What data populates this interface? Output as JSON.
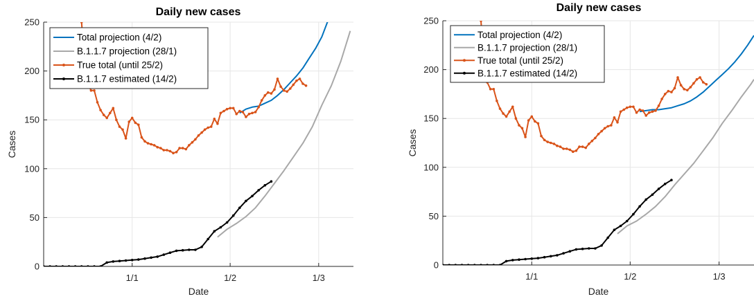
{
  "chart_data": [
    {
      "type": "line",
      "title": "Daily new cases",
      "xlabel": "Date",
      "ylabel": "Cases",
      "xlim": [
        "2020-12-04",
        "2021-03-12"
      ],
      "ylim": [
        0,
        250
      ],
      "xticks": [
        {
          "date": "2021-01-01",
          "label": "1/1"
        },
        {
          "date": "2021-02-01",
          "label": "1/2"
        },
        {
          "date": "2021-03-01",
          "label": "1/3"
        }
      ],
      "yticks": [
        0,
        50,
        100,
        150,
        200,
        250
      ],
      "grid": true,
      "legend_position": "top-left",
      "series": [
        {
          "name": "Total projection (4/2)",
          "color": "#0072BD",
          "marker": "none",
          "x": [
            "2021-02-04",
            "2021-02-06",
            "2021-02-08",
            "2021-02-10",
            "2021-02-12",
            "2021-02-14",
            "2021-02-16",
            "2021-02-18",
            "2021-02-20",
            "2021-02-22",
            "2021-02-24",
            "2021-02-26",
            "2021-02-28",
            "2021-03-02",
            "2021-03-04"
          ],
          "y": [
            157,
            161,
            163,
            164,
            167,
            170,
            175,
            181,
            188,
            195,
            203,
            213,
            223,
            235,
            252
          ]
        },
        {
          "name": "B.1.1.7 projection (28/1)",
          "color": "#A8A8A8",
          "marker": "none",
          "x": [
            "2021-01-28",
            "2021-01-31",
            "2021-02-03",
            "2021-02-06",
            "2021-02-09",
            "2021-02-12",
            "2021-02-15",
            "2021-02-18",
            "2021-02-21",
            "2021-02-24",
            "2021-02-27",
            "2021-03-02",
            "2021-03-05",
            "2021-03-08",
            "2021-03-11"
          ],
          "y": [
            30,
            38,
            44,
            51,
            60,
            72,
            85,
            98,
            112,
            126,
            143,
            165,
            185,
            210,
            241
          ]
        },
        {
          "name": "True total (until 25/2)",
          "color": "#D95319",
          "marker": "dot",
          "x": [
            "2020-12-16",
            "2020-12-17",
            "2020-12-18",
            "2020-12-19",
            "2020-12-20",
            "2020-12-21",
            "2020-12-22",
            "2020-12-23",
            "2020-12-24",
            "2020-12-25",
            "2020-12-26",
            "2020-12-27",
            "2020-12-28",
            "2020-12-29",
            "2020-12-30",
            "2020-12-31",
            "2021-01-01",
            "2021-01-02",
            "2021-01-03",
            "2021-01-04",
            "2021-01-05",
            "2021-01-06",
            "2021-01-07",
            "2021-01-08",
            "2021-01-09",
            "2021-01-10",
            "2021-01-11",
            "2021-01-12",
            "2021-01-13",
            "2021-01-14",
            "2021-01-15",
            "2021-01-16",
            "2021-01-17",
            "2021-01-18",
            "2021-01-19",
            "2021-01-20",
            "2021-01-21",
            "2021-01-22",
            "2021-01-23",
            "2021-01-24",
            "2021-01-25",
            "2021-01-26",
            "2021-01-27",
            "2021-01-28",
            "2021-01-29",
            "2021-01-30",
            "2021-01-31",
            "2021-02-01",
            "2021-02-02",
            "2021-02-03",
            "2021-02-04",
            "2021-02-05",
            "2021-02-06",
            "2021-02-07",
            "2021-02-08",
            "2021-02-09",
            "2021-02-10",
            "2021-02-11",
            "2021-02-12",
            "2021-02-13",
            "2021-02-14",
            "2021-02-15",
            "2021-02-16",
            "2021-02-17",
            "2021-02-18",
            "2021-02-19",
            "2021-02-20",
            "2021-02-21",
            "2021-02-22",
            "2021-02-23",
            "2021-02-24",
            "2021-02-25"
          ],
          "y": [
            250,
            205,
            187,
            180,
            180,
            168,
            160,
            155,
            152,
            157,
            162,
            150,
            143,
            140,
            131,
            148,
            152,
            147,
            145,
            132,
            128,
            126,
            125,
            124,
            122,
            121,
            119,
            119,
            118,
            116,
            117,
            121,
            121,
            120,
            124,
            127,
            130,
            134,
            137,
            140,
            142,
            143,
            151,
            146,
            157,
            159,
            161,
            162,
            162,
            156,
            159,
            158,
            153,
            156,
            157,
            158,
            163,
            170,
            175,
            178,
            177,
            181,
            192,
            184,
            180,
            179,
            182,
            186,
            190,
            192,
            187,
            185
          ]
        },
        {
          "name": "B.1.1.7 estimated (14/2)",
          "color": "#000000",
          "marker": "dot",
          "x": [
            "2020-12-04",
            "2020-12-06",
            "2020-12-08",
            "2020-12-10",
            "2020-12-12",
            "2020-12-14",
            "2020-12-16",
            "2020-12-18",
            "2020-12-20",
            "2020-12-22",
            "2020-12-24",
            "2020-12-26",
            "2020-12-28",
            "2020-12-30",
            "2021-01-01",
            "2021-01-03",
            "2021-01-05",
            "2021-01-07",
            "2021-01-09",
            "2021-01-11",
            "2021-01-13",
            "2021-01-15",
            "2021-01-17",
            "2021-01-19",
            "2021-01-21",
            "2021-01-23",
            "2021-01-25",
            "2021-01-27",
            "2021-01-29",
            "2021-01-31",
            "2021-02-02",
            "2021-02-04",
            "2021-02-06",
            "2021-02-08",
            "2021-02-10",
            "2021-02-12",
            "2021-02-14"
          ],
          "y": [
            0,
            0,
            0,
            0,
            0,
            0,
            0,
            0,
            0,
            0,
            4,
            5,
            5.5,
            6,
            6.5,
            7,
            8,
            9,
            10,
            12,
            14,
            16,
            16.5,
            17,
            17,
            20,
            28,
            36,
            40,
            45,
            52,
            60,
            67,
            72,
            78,
            83,
            87
          ]
        }
      ]
    },
    {
      "type": "line",
      "title": "Daily new cases",
      "xlabel": "Date",
      "ylabel": "Cases",
      "xlim": [
        "2020-12-04",
        "2021-03-12"
      ],
      "ylim": [
        0,
        250
      ],
      "xticks": [
        {
          "date": "2021-01-01",
          "label": "1/1"
        },
        {
          "date": "2021-02-01",
          "label": "1/2"
        },
        {
          "date": "2021-03-01",
          "label": "1/3"
        }
      ],
      "yticks": [
        0,
        50,
        100,
        150,
        200,
        250
      ],
      "grid": true,
      "legend_position": "top-left",
      "series": [
        {
          "name": "Total projection (4/2)",
          "color": "#0072BD",
          "marker": "none",
          "x": [
            "2021-02-04",
            "2021-02-06",
            "2021-02-08",
            "2021-02-10",
            "2021-02-12",
            "2021-02-14",
            "2021-02-16",
            "2021-02-18",
            "2021-02-20",
            "2021-02-22",
            "2021-02-24",
            "2021-02-26",
            "2021-02-28",
            "2021-03-02",
            "2021-03-04",
            "2021-03-06",
            "2021-03-08",
            "2021-03-10",
            "2021-03-12"
          ],
          "y": [
            157,
            158,
            159,
            159,
            160,
            161,
            163,
            165,
            168,
            172,
            177,
            183,
            189,
            195,
            201,
            208,
            216,
            225,
            235
          ]
        },
        {
          "name": "B.1.1.7 projection (28/1)",
          "color": "#A8A8A8",
          "marker": "none",
          "x": [
            "2021-01-28",
            "2021-01-31",
            "2021-02-03",
            "2021-02-06",
            "2021-02-09",
            "2021-02-12",
            "2021-02-15",
            "2021-02-18",
            "2021-02-21",
            "2021-02-24",
            "2021-02-27",
            "2021-03-02",
            "2021-03-05",
            "2021-03-08",
            "2021-03-11",
            "2021-03-12"
          ],
          "y": [
            32,
            40,
            45,
            52,
            60,
            70,
            82,
            93,
            104,
            117,
            130,
            145,
            158,
            172,
            185,
            190
          ]
        },
        {
          "name": "True total (until 25/2)",
          "color": "#D95319",
          "marker": "dot",
          "x": [
            "2020-12-16",
            "2020-12-17",
            "2020-12-18",
            "2020-12-19",
            "2020-12-20",
            "2020-12-21",
            "2020-12-22",
            "2020-12-23",
            "2020-12-24",
            "2020-12-25",
            "2020-12-26",
            "2020-12-27",
            "2020-12-28",
            "2020-12-29",
            "2020-12-30",
            "2020-12-31",
            "2021-01-01",
            "2021-01-02",
            "2021-01-03",
            "2021-01-04",
            "2021-01-05",
            "2021-01-06",
            "2021-01-07",
            "2021-01-08",
            "2021-01-09",
            "2021-01-10",
            "2021-01-11",
            "2021-01-12",
            "2021-01-13",
            "2021-01-14",
            "2021-01-15",
            "2021-01-16",
            "2021-01-17",
            "2021-01-18",
            "2021-01-19",
            "2021-01-20",
            "2021-01-21",
            "2021-01-22",
            "2021-01-23",
            "2021-01-24",
            "2021-01-25",
            "2021-01-26",
            "2021-01-27",
            "2021-01-28",
            "2021-01-29",
            "2021-01-30",
            "2021-01-31",
            "2021-02-01",
            "2021-02-02",
            "2021-02-03",
            "2021-02-04",
            "2021-02-05",
            "2021-02-06",
            "2021-02-07",
            "2021-02-08",
            "2021-02-09",
            "2021-02-10",
            "2021-02-11",
            "2021-02-12",
            "2021-02-13",
            "2021-02-14",
            "2021-02-15",
            "2021-02-16",
            "2021-02-17",
            "2021-02-18",
            "2021-02-19",
            "2021-02-20",
            "2021-02-21",
            "2021-02-22",
            "2021-02-23",
            "2021-02-24",
            "2021-02-25"
          ],
          "y": [
            250,
            205,
            187,
            180,
            180,
            168,
            160,
            155,
            152,
            157,
            162,
            150,
            143,
            140,
            131,
            148,
            152,
            147,
            145,
            132,
            128,
            126,
            125,
            124,
            122,
            121,
            119,
            119,
            118,
            116,
            117,
            121,
            121,
            120,
            124,
            127,
            130,
            134,
            137,
            140,
            142,
            143,
            151,
            146,
            157,
            159,
            161,
            162,
            162,
            156,
            159,
            158,
            153,
            156,
            157,
            158,
            163,
            170,
            175,
            178,
            177,
            181,
            192,
            184,
            180,
            179,
            182,
            186,
            190,
            192,
            187,
            185
          ]
        },
        {
          "name": "B.1.1.7 estimated (14/2)",
          "color": "#000000",
          "marker": "dot",
          "x": [
            "2020-12-04",
            "2020-12-06",
            "2020-12-08",
            "2020-12-10",
            "2020-12-12",
            "2020-12-14",
            "2020-12-16",
            "2020-12-18",
            "2020-12-20",
            "2020-12-22",
            "2020-12-24",
            "2020-12-26",
            "2020-12-28",
            "2020-12-30",
            "2021-01-01",
            "2021-01-03",
            "2021-01-05",
            "2021-01-07",
            "2021-01-09",
            "2021-01-11",
            "2021-01-13",
            "2021-01-15",
            "2021-01-17",
            "2021-01-19",
            "2021-01-21",
            "2021-01-23",
            "2021-01-25",
            "2021-01-27",
            "2021-01-29",
            "2021-01-31",
            "2021-02-02",
            "2021-02-04",
            "2021-02-06",
            "2021-02-08",
            "2021-02-10",
            "2021-02-12",
            "2021-02-14"
          ],
          "y": [
            0,
            0,
            0,
            0,
            0,
            0,
            0,
            0,
            0,
            0,
            4,
            5,
            5.5,
            6,
            6.5,
            7,
            8,
            9,
            10,
            12,
            14,
            16,
            16.5,
            17,
            17,
            20,
            28,
            36,
            40,
            45,
            52,
            60,
            67,
            72,
            78,
            83,
            87
          ]
        }
      ]
    }
  ]
}
